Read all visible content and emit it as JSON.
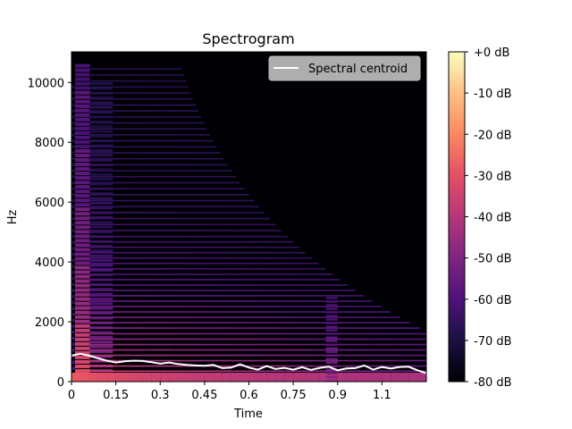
{
  "chart_data": {
    "type": "heatmap",
    "title": "Spectrogram",
    "xlabel": "Time",
    "ylabel": "Hz",
    "xlim": [
      0,
      1.2
    ],
    "ylim": [
      0,
      11025
    ],
    "x_ticks": [
      0,
      0.15,
      0.3,
      0.45,
      0.6,
      0.75,
      0.9,
      1.05
    ],
    "x_tick_labels": [
      "0",
      "0.15",
      "0.3",
      "0.45",
      "0.6",
      "0.75",
      "0.9",
      "1.1"
    ],
    "y_ticks": [
      0,
      2000,
      4000,
      6000,
      8000,
      10000
    ],
    "y_tick_labels": [
      "0",
      "2000",
      "4000",
      "6000",
      "8000",
      "10000"
    ],
    "colorbar": {
      "range": [
        -80,
        0
      ],
      "ticks": [
        0,
        -10,
        -20,
        -30,
        -40,
        -50,
        -60,
        -70,
        -80
      ],
      "labels": [
        "+0 dB",
        "-10 dB",
        "-20 dB",
        "-30 dB",
        "-40 dB",
        "-50 dB",
        "-60 dB",
        "-70 dB",
        "-80 dB"
      ],
      "colormap": "magma"
    },
    "legend": {
      "position": "upper right",
      "entries": [
        "Spectral centroid"
      ]
    },
    "series": [
      {
        "name": "Spectral centroid",
        "color": "#ffffff",
        "x": [
          0.0,
          0.03,
          0.06,
          0.09,
          0.12,
          0.15,
          0.18,
          0.21,
          0.24,
          0.27,
          0.3,
          0.33,
          0.36,
          0.39,
          0.42,
          0.45,
          0.48,
          0.51,
          0.54,
          0.57,
          0.6,
          0.63,
          0.66,
          0.69,
          0.72,
          0.75,
          0.78,
          0.81,
          0.84,
          0.87,
          0.9,
          0.93,
          0.96,
          0.99,
          1.02,
          1.05,
          1.08,
          1.11,
          1.14,
          1.17,
          1.2
        ],
        "y": [
          870,
          930,
          870,
          780,
          700,
          640,
          680,
          700,
          690,
          650,
          600,
          640,
          590,
          560,
          540,
          530,
          560,
          450,
          470,
          580,
          470,
          400,
          520,
          420,
          460,
          400,
          480,
          390,
          460,
          500,
          380,
          440,
          450,
          540,
          400,
          490,
          440,
          490,
          500,
          380,
          280
        ]
      }
    ],
    "harmonics_hz": [
      180,
      350,
      520,
      700,
      880,
      1060,
      1240,
      1420,
      1600,
      1790,
      1970,
      2150,
      2330,
      2510,
      2690,
      2870,
      3050,
      3230,
      3410,
      3590,
      3770,
      3950,
      4130,
      4310,
      4490,
      4670,
      4850,
      5050,
      5250,
      5450,
      5650,
      5850,
      6050,
      6250,
      6450,
      6650,
      6850,
      7050,
      7250,
      7450,
      7650,
      7850,
      8050,
      8250,
      8450,
      8650,
      8850,
      9050,
      9250,
      9450,
      9650,
      9850,
      10050,
      10250,
      10450
    ]
  }
}
